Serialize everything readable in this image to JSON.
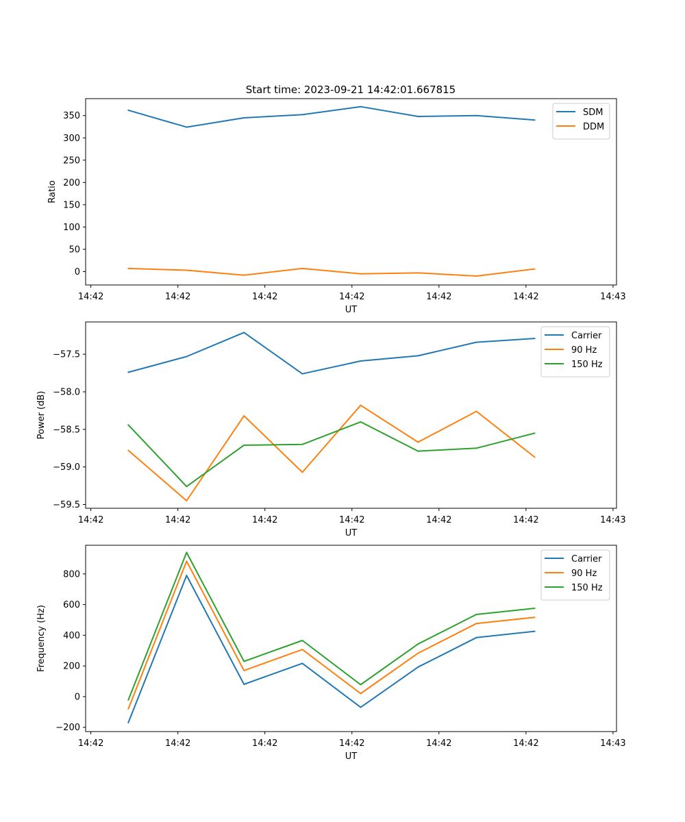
{
  "figure_title": "Start time: 2023-09-21 14:42:01.667815",
  "chart_data": [
    {
      "type": "line",
      "title": "Start time: 2023-09-21 14:42:01.667815",
      "xlabel": "UT",
      "ylabel": "Ratio",
      "x_ticks": [
        "14:42",
        "14:42",
        "14:42",
        "14:42",
        "14:42",
        "14:42",
        "14:43"
      ],
      "x_tick_index": [
        0,
        1,
        2,
        3,
        4,
        5,
        6
      ],
      "x_range": [
        -0.06,
        6.04
      ],
      "x": [
        0.43,
        1.1,
        1.76,
        2.43,
        3.1,
        3.76,
        4.43,
        5.1
      ],
      "ylim": [
        -30,
        388
      ],
      "y_ticks": [
        0,
        50,
        100,
        150,
        200,
        250,
        300,
        350
      ],
      "legend_position": "upper right",
      "series": [
        {
          "name": "SDM",
          "color": "#1f77b4",
          "values": [
            362,
            324,
            345,
            352,
            370,
            348,
            350,
            340
          ]
        },
        {
          "name": "DDM",
          "color": "#ff7f0e",
          "values": [
            7,
            3,
            -8,
            7,
            -5,
            -3,
            -10,
            6
          ]
        }
      ]
    },
    {
      "type": "line",
      "title": "",
      "xlabel": "UT",
      "ylabel": "Power (dB)",
      "x_ticks": [
        "14:42",
        "14:42",
        "14:42",
        "14:42",
        "14:42",
        "14:42",
        "14:43"
      ],
      "x_tick_index": [
        0,
        1,
        2,
        3,
        4,
        5,
        6
      ],
      "x_range": [
        -0.06,
        6.04
      ],
      "x": [
        0.43,
        1.1,
        1.76,
        2.43,
        3.1,
        3.76,
        4.43,
        5.1
      ],
      "ylim": [
        -59.55,
        -57.07
      ],
      "y_ticks": [
        -59.5,
        -59.0,
        -58.5,
        -58.0,
        -57.5
      ],
      "y_tick_labels": [
        "−59.5",
        "−59.0",
        "−58.5",
        "−58.0",
        "−57.5"
      ],
      "legend_position": "upper right",
      "series": [
        {
          "name": "Carrier",
          "color": "#1f77b4",
          "values": [
            -57.74,
            -57.53,
            -57.21,
            -57.76,
            -57.59,
            -57.52,
            -57.34,
            -57.29
          ]
        },
        {
          "name": "90 Hz",
          "color": "#ff7f0e",
          "values": [
            -58.78,
            -59.45,
            -58.32,
            -59.07,
            -58.18,
            -58.67,
            -58.26,
            -58.87
          ]
        },
        {
          "name": "150 Hz",
          "color": "#2ca02c",
          "values": [
            -58.44,
            -59.26,
            -58.71,
            -58.7,
            -58.4,
            -58.79,
            -58.75,
            -58.55
          ]
        }
      ]
    },
    {
      "type": "line",
      "title": "",
      "xlabel": "UT",
      "ylabel": "Frequency (Hz)",
      "x_ticks": [
        "14:42",
        "14:42",
        "14:42",
        "14:42",
        "14:42",
        "14:42",
        "14:43"
      ],
      "x_tick_index": [
        0,
        1,
        2,
        3,
        4,
        5,
        6
      ],
      "x_range": [
        -0.06,
        6.04
      ],
      "x": [
        0.43,
        1.1,
        1.76,
        2.43,
        3.1,
        3.76,
        4.43,
        5.1
      ],
      "ylim": [
        -228,
        987
      ],
      "y_ticks": [
        -200,
        0,
        200,
        400,
        600,
        800
      ],
      "y_tick_labels": [
        "−200",
        "0",
        "200",
        "400",
        "600",
        "800"
      ],
      "legend_position": "upper right",
      "series": [
        {
          "name": "Carrier",
          "color": "#1f77b4",
          "values": [
            -170,
            790,
            80,
            217,
            -70,
            193,
            385,
            426
          ]
        },
        {
          "name": "90 Hz",
          "color": "#ff7f0e",
          "values": [
            -80,
            883,
            170,
            307,
            20,
            283,
            477,
            517
          ]
        },
        {
          "name": "150 Hz",
          "color": "#2ca02c",
          "values": [
            -22,
            940,
            230,
            366,
            78,
            343,
            536,
            576
          ]
        }
      ]
    }
  ]
}
